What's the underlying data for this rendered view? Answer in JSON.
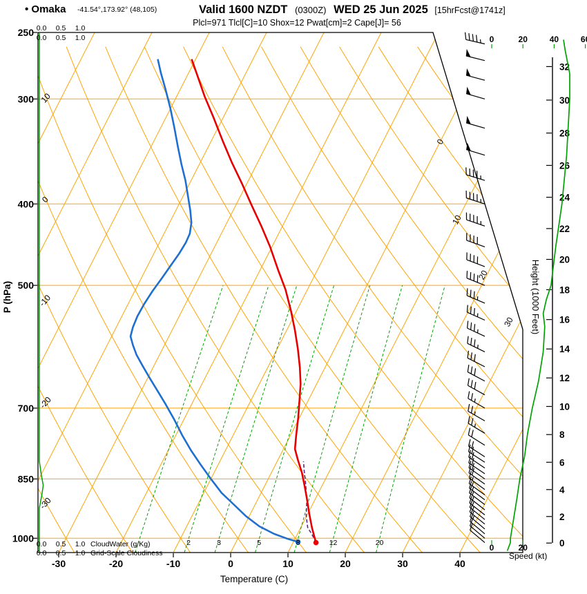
{
  "header": {
    "station_label": "• Omaka",
    "coords": "-41.54°,173.92° (48,105)",
    "valid_main": "Valid 1600 NZDT",
    "valid_z": "(0300Z)",
    "valid_date": "WED 25 Jun 2025",
    "fcst_tag": "[15hrFcst@1741z]",
    "indices": "Plcl=971 Tlcl[C]=10 Shox=12 Pwat[cm]=2 Cape[J]= 56"
  },
  "axes": {
    "pressure_title": "P (hPa)",
    "pressure_ticks": [
      250,
      300,
      400,
      500,
      700,
      850,
      1000
    ],
    "temperature_title": "Temperature (C)",
    "temperature_ticks": [
      -30,
      -20,
      -10,
      0,
      10,
      20,
      30,
      40
    ],
    "height_title": "Height (1000 Feet)",
    "height_ticks": [
      0,
      2,
      4,
      6,
      8,
      10,
      12,
      14,
      16,
      18,
      20,
      22,
      24,
      26,
      28,
      30,
      32
    ],
    "speed_title": "Speed (kt)",
    "speed_ticks_top": [
      "0",
      "20",
      "40",
      "60"
    ],
    "speed_ticks_bottom": [
      "0",
      "20"
    ],
    "cloudwater_scale": [
      "0.0",
      "0.5",
      "1.0"
    ],
    "cloudwater_label": "CloudWater (g/Kg)",
    "cloudiness_scale": [
      "0.0",
      "0.5",
      "1.0"
    ],
    "cloudiness_label": "Grid-Scale Cloudiness"
  },
  "colors": {
    "grid_orange": "#FFA500",
    "green": "#00A300",
    "temperature_red": "#E60000",
    "dewpoint_blue": "#1D6FD1",
    "parcel_purple": "#5B2A86",
    "indices_magenta": "#CC0066",
    "black": "#000000"
  },
  "chart_data": {
    "type": "skewt_log_p_sounding",
    "pressure_range_hpa": [
      250,
      1040
    ],
    "temperature_axis_c": [
      -30,
      40
    ],
    "temperature_profile_p_t": [
      [
        1012,
        14.0
      ],
      [
        1002,
        13.5
      ],
      [
        972,
        12.0
      ],
      [
        936,
        10.3
      ],
      [
        897,
        8.5
      ],
      [
        865,
        6.9
      ],
      [
        835,
        5.3
      ],
      [
        807,
        3.5
      ],
      [
        783,
        2.0
      ],
      [
        754,
        1.0
      ],
      [
        719,
        -0.2
      ],
      [
        686,
        -1.5
      ],
      [
        655,
        -2.8
      ],
      [
        626,
        -4.4
      ],
      [
        595,
        -6.4
      ],
      [
        565,
        -8.6
      ],
      [
        536,
        -11.0
      ],
      [
        506,
        -13.8
      ],
      [
        479,
        -16.9
      ],
      [
        450,
        -20.3
      ],
      [
        425,
        -23.7
      ],
      [
        401,
        -27.3
      ],
      [
        378,
        -30.9
      ],
      [
        357,
        -34.5
      ],
      [
        336,
        -38.1
      ],
      [
        315,
        -41.8
      ],
      [
        298,
        -45.1
      ],
      [
        281,
        -48.3
      ],
      [
        269,
        -50.7
      ]
    ],
    "dewpoint_profile_p_t": [
      [
        1010,
        10.8
      ],
      [
        1002,
        8.8
      ],
      [
        988,
        5.9
      ],
      [
        968,
        2.7
      ],
      [
        941,
        -0.6
      ],
      [
        911,
        -3.8
      ],
      [
        883,
        -6.9
      ],
      [
        852,
        -9.8
      ],
      [
        819,
        -12.9
      ],
      [
        786,
        -16.0
      ],
      [
        754,
        -18.9
      ],
      [
        722,
        -21.7
      ],
      [
        693,
        -24.5
      ],
      [
        668,
        -27.1
      ],
      [
        645,
        -29.6
      ],
      [
        624,
        -31.9
      ],
      [
        605,
        -34.0
      ],
      [
        589,
        -35.5
      ],
      [
        575,
        -36.7
      ],
      [
        561,
        -37.1
      ],
      [
        544,
        -37.3
      ],
      [
        526,
        -37.2
      ],
      [
        508,
        -36.9
      ],
      [
        490,
        -36.4
      ],
      [
        474,
        -36.0
      ],
      [
        459,
        -35.6
      ],
      [
        445,
        -35.4
      ],
      [
        434,
        -35.5
      ],
      [
        421,
        -36.2
      ],
      [
        407,
        -37.5
      ],
      [
        392,
        -39.1
      ],
      [
        375,
        -41.0
      ],
      [
        359,
        -43.1
      ],
      [
        342,
        -45.3
      ],
      [
        324,
        -47.7
      ],
      [
        308,
        -50.0
      ],
      [
        292,
        -52.6
      ],
      [
        279,
        -54.9
      ],
      [
        269,
        -56.6
      ]
    ],
    "parcel_path_p_t": [
      [
        1012,
        14.0
      ],
      [
        990,
        12.6
      ],
      [
        971,
        11.2
      ],
      [
        940,
        9.9
      ],
      [
        900,
        8.6
      ],
      [
        860,
        6.9
      ],
      [
        830,
        5.5
      ],
      [
        810,
        4.6
      ]
    ],
    "wind_barbs_p_kt_dir": [
      [
        1012,
        12,
        310
      ],
      [
        1000,
        12,
        310
      ],
      [
        988,
        12,
        310
      ],
      [
        975,
        13,
        310
      ],
      [
        962,
        13,
        309
      ],
      [
        950,
        14,
        309
      ],
      [
        938,
        14,
        308
      ],
      [
        925,
        15,
        308
      ],
      [
        912,
        15,
        307
      ],
      [
        900,
        16,
        307
      ],
      [
        888,
        16,
        306
      ],
      [
        875,
        17,
        306
      ],
      [
        862,
        18,
        305
      ],
      [
        850,
        18,
        305
      ],
      [
        838,
        19,
        304
      ],
      [
        825,
        20,
        304
      ],
      [
        812,
        20,
        303
      ],
      [
        800,
        21,
        303
      ],
      [
        775,
        22,
        302
      ],
      [
        750,
        23,
        301
      ],
      [
        725,
        24,
        300
      ],
      [
        700,
        26,
        300
      ],
      [
        675,
        28,
        299
      ],
      [
        650,
        30,
        298
      ],
      [
        625,
        31,
        297
      ],
      [
        600,
        33,
        296
      ],
      [
        575,
        34,
        295
      ],
      [
        550,
        35,
        294
      ],
      [
        525,
        36,
        293
      ],
      [
        500,
        38,
        292
      ],
      [
        475,
        40,
        291
      ],
      [
        450,
        41,
        290
      ],
      [
        425,
        43,
        289
      ],
      [
        400,
        45,
        288
      ],
      [
        375,
        47,
        287
      ],
      [
        350,
        48,
        287
      ],
      [
        325,
        49,
        286
      ],
      [
        300,
        50,
        286
      ],
      [
        285,
        50,
        285
      ],
      [
        270,
        48,
        284
      ],
      [
        258,
        45,
        283
      ]
    ],
    "wind_speed_profile_p_kt": [
      [
        1035,
        10
      ],
      [
        1012,
        12
      ],
      [
        1000,
        12
      ],
      [
        950,
        14
      ],
      [
        900,
        16
      ],
      [
        850,
        18
      ],
      [
        800,
        21
      ],
      [
        750,
        23
      ],
      [
        700,
        26
      ],
      [
        650,
        30
      ],
      [
        600,
        33
      ],
      [
        560,
        34
      ],
      [
        540,
        33
      ],
      [
        520,
        35
      ],
      [
        500,
        38
      ],
      [
        450,
        41
      ],
      [
        400,
        45
      ],
      [
        350,
        48
      ],
      [
        300,
        50
      ],
      [
        280,
        50
      ],
      [
        262,
        47
      ],
      [
        255,
        46
      ]
    ],
    "cloud_water_profile_p_gkg": [
      [
        1035,
        0.0
      ],
      [
        920,
        0.0
      ],
      [
        890,
        0.06
      ],
      [
        865,
        0.1
      ],
      [
        840,
        0.05
      ],
      [
        810,
        0.0
      ],
      [
        250,
        0.0
      ]
    ],
    "mixing_ratio_lines_gkg": [
      1,
      2,
      3,
      5,
      8,
      12,
      20
    ],
    "dry_adiabat_labels_c": [
      10,
      0,
      -10,
      -20,
      -30
    ],
    "isotherm_labels_c": [
      0,
      10,
      20,
      30
    ]
  }
}
